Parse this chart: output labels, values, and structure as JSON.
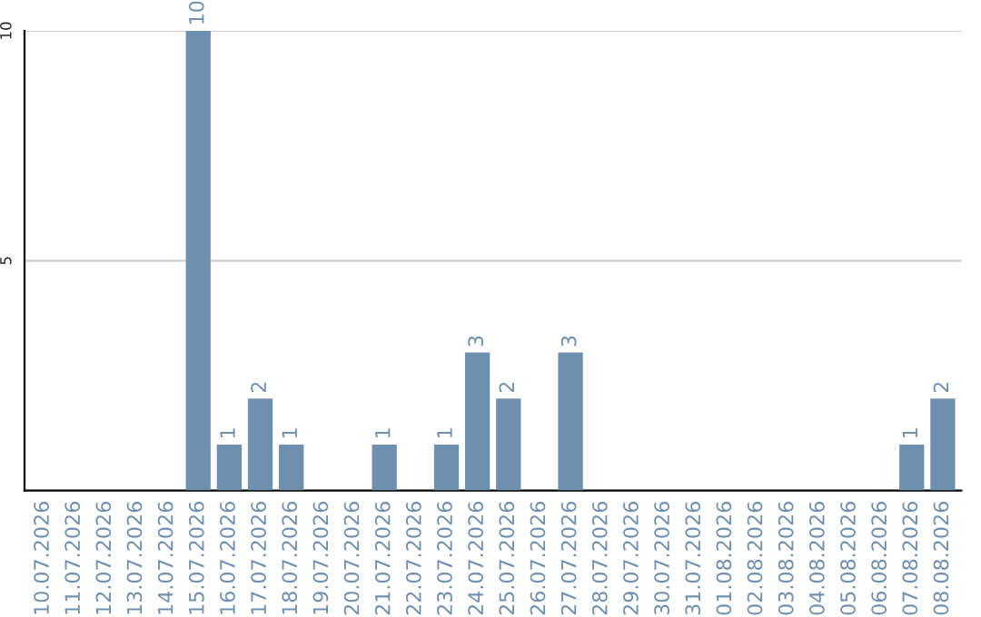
{
  "chart_data": {
    "type": "bar",
    "categories": [
      "10.07.2026",
      "11.07.2026",
      "12.07.2026",
      "13.07.2026",
      "14.07.2026",
      "15.07.2026",
      "16.07.2026",
      "17.07.2026",
      "18.07.2026",
      "19.07.2026",
      "20.07.2026",
      "21.07.2026",
      "22.07.2026",
      "23.07.2026",
      "24.07.2026",
      "25.07.2026",
      "26.07.2026",
      "27.07.2026",
      "28.07.2026",
      "29.07.2026",
      "30.07.2026",
      "31.07.2026",
      "01.08.2026",
      "02.08.2026",
      "03.08.2026",
      "04.08.2026",
      "05.08.2026",
      "06.08.2026",
      "07.08.2026",
      "08.08.2026"
    ],
    "values": [
      0,
      0,
      0,
      0,
      0,
      10,
      1,
      2,
      1,
      0,
      0,
      1,
      0,
      1,
      3,
      2,
      0,
      3,
      0,
      0,
      0,
      0,
      0,
      0,
      0,
      0,
      0,
      0,
      1,
      2
    ],
    "value_labels": [
      null,
      null,
      null,
      null,
      null,
      "10",
      "1",
      "2",
      "1",
      null,
      null,
      "1",
      null,
      "1",
      "3",
      "2",
      null,
      "3",
      null,
      null,
      null,
      null,
      null,
      null,
      null,
      null,
      null,
      null,
      "1",
      "2"
    ],
    "color": "#6f8fae",
    "ylim": [
      0,
      10
    ],
    "yticks": [
      5,
      10
    ],
    "grid": "y"
  }
}
